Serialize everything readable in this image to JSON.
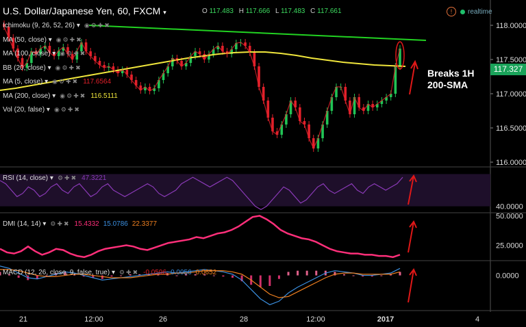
{
  "header": {
    "title": "U.S. Dollar/Japanese Yen, 60, FXCM",
    "open_label": "O",
    "open": "117.483",
    "high_label": "H",
    "high": "117.666",
    "low_label": "L",
    "low": "117.483",
    "close_label": "C",
    "close": "117.661",
    "realtime": "realtime",
    "alert_icon": "alert-icon"
  },
  "colors": {
    "background": "#000000",
    "bull": "#22c455",
    "bear": "#e2202a",
    "sma200": "#f0e63c",
    "trendline": "#22d322",
    "rsi": "#8b3ab8",
    "dmi": "#ff2f7a",
    "macd": "#3b8fe0",
    "signal": "#f08020",
    "annotation": "#e01818"
  },
  "indicators": [
    {
      "label": "Ichimoku (9, 26, 52, 26)"
    },
    {
      "label": "MA (50, close)"
    },
    {
      "label": "MA (100, close)"
    },
    {
      "label": "BB (20, close)"
    },
    {
      "label": "MA (5, close)",
      "value": "117.6564",
      "color": "#e2202a"
    },
    {
      "label": "MA (200, close)",
      "value": "116.5111",
      "color": "#f0e63c"
    },
    {
      "label": "Vol (20, false)"
    }
  ],
  "annotation": {
    "line1": "Breaks 1H",
    "line2": "200-SMA"
  },
  "current_price": "117.327",
  "panes": {
    "rsi": {
      "label": "RSI (14, close)",
      "value": "47.3221"
    },
    "dmi": {
      "label": "DMI (14, 14)",
      "v1": "15.4332",
      "v2": "15.0786",
      "v3": "22.3377"
    },
    "macd": {
      "label": "MACD (12, 26, close, 9, false, true)",
      "v1": "-0.0596",
      "v2": "0.0056",
      "v3": "0.0652"
    }
  },
  "chart_data": [
    {
      "type": "candlestick",
      "title": "U.S. Dollar/Japanese Yen, 60, FXCM",
      "ylim": [
        115.93,
        118.17
      ],
      "y_ticks": [
        118.0,
        117.5,
        117.0,
        116.5,
        116.0
      ],
      "x_ticks": [
        "21",
        "12:00",
        "26",
        "28",
        "12:00",
        "2017",
        "4"
      ],
      "candle_closes": [
        117.98,
        117.82,
        117.66,
        117.52,
        117.38,
        117.45,
        117.62,
        117.58,
        117.66,
        117.7,
        117.6,
        117.55,
        117.63,
        117.68,
        117.58,
        117.5,
        117.62,
        117.75,
        117.62,
        117.55,
        117.48,
        117.42,
        117.38,
        117.4,
        117.35,
        117.3,
        117.35,
        117.28,
        117.2,
        117.12,
        117.05,
        117.1,
        117.04,
        117.08,
        117.2,
        117.3,
        117.4,
        117.52,
        117.48,
        117.4,
        117.45,
        117.55,
        117.62,
        117.58,
        117.5,
        117.58,
        117.65,
        117.7,
        117.62,
        117.58,
        117.65,
        117.74,
        117.75,
        117.7,
        117.6,
        117.4,
        117.1,
        116.9,
        116.65,
        116.45,
        116.4,
        116.55,
        116.7,
        116.9,
        116.8,
        116.6,
        116.55,
        116.35,
        116.2,
        116.35,
        116.55,
        116.75,
        116.95,
        117.1,
        117.1,
        116.9,
        116.7,
        116.95,
        116.8,
        116.75,
        116.85,
        116.8,
        116.85,
        116.9,
        116.95,
        117.0,
        117.4,
        117.66
      ],
      "sma200": [
        117.05,
        117.08,
        117.12,
        117.16,
        117.2,
        117.24,
        117.28,
        117.32,
        117.36,
        117.4,
        117.44,
        117.48,
        117.52,
        117.55,
        117.58,
        117.6,
        117.61,
        117.61,
        117.59,
        117.56,
        117.52,
        117.49,
        117.46,
        117.44,
        117.42,
        117.41,
        117.4
      ],
      "trendline": {
        "from": 118.0,
        "to": 117.78
      },
      "current_price": 117.327
    },
    {
      "type": "line",
      "name": "RSI (14, close)",
      "ylim": [
        38,
        52
      ],
      "y_ticks": [
        40.0
      ],
      "values": [
        48,
        47,
        45,
        43,
        44,
        46,
        45,
        43,
        44,
        46,
        47,
        45,
        44,
        46,
        47,
        45,
        43,
        44,
        46,
        47,
        45,
        44,
        43,
        44,
        45,
        46,
        47,
        46,
        44,
        43,
        44,
        45,
        47,
        48,
        49,
        48,
        47,
        46,
        47,
        48,
        49,
        48,
        46,
        44,
        42,
        40,
        39,
        40,
        42,
        44,
        46,
        45,
        43,
        41,
        42,
        44,
        46,
        47,
        45,
        44,
        45,
        46,
        47,
        45,
        44,
        46,
        47,
        46,
        45,
        46,
        47,
        49
      ]
    },
    {
      "type": "line",
      "name": "DMI (14, 14)",
      "ylim": [
        12,
        52
      ],
      "y_ticks": [
        50.0,
        25.0
      ],
      "values": [
        22,
        19,
        18,
        20,
        24,
        20,
        17,
        19,
        22,
        21,
        18,
        16,
        15,
        17,
        20,
        22,
        23,
        24,
        25,
        24,
        22,
        21,
        23,
        25,
        27,
        28,
        29,
        30,
        32,
        31,
        33,
        35,
        36,
        38,
        41,
        45,
        49,
        50,
        47,
        43,
        38,
        35,
        33,
        31,
        30,
        28,
        25,
        22,
        20,
        19,
        18,
        18,
        17,
        17,
        16,
        16,
        15,
        17
      ]
    },
    {
      "type": "line",
      "name": "MACD (12, 26, close, 9, false, true)",
      "ylim": [
        -0.3,
        0.12
      ],
      "y_ticks": [
        0.0
      ],
      "macd": [
        0.08,
        0.06,
        0.02,
        -0.02,
        -0.03,
        -0.01,
        0.01,
        0.03,
        0.02,
        0.0,
        -0.02,
        -0.04,
        -0.03,
        -0.02,
        -0.01,
        0.0,
        0.01,
        0.02,
        0.03,
        0.02,
        0.03,
        0.04,
        0.05,
        0.04,
        0.03,
        0.01,
        -0.04,
        -0.12,
        -0.2,
        -0.25,
        -0.22,
        -0.15,
        -0.1,
        -0.06,
        -0.02,
        0.02,
        0.04,
        0.03,
        0.02,
        0.0,
        0.0,
        0.01,
        0.02,
        0.06
      ],
      "signal": [
        0.05,
        0.05,
        0.04,
        0.02,
        0.0,
        -0.01,
        -0.01,
        0.0,
        0.01,
        0.01,
        0.0,
        -0.01,
        -0.02,
        -0.02,
        -0.02,
        -0.01,
        0.0,
        0.01,
        0.01,
        0.02,
        0.02,
        0.03,
        0.04,
        0.04,
        0.04,
        0.03,
        0.01,
        -0.04,
        -0.1,
        -0.16,
        -0.19,
        -0.18,
        -0.14,
        -0.1,
        -0.06,
        -0.02,
        0.01,
        0.02,
        0.02,
        0.01,
        0.01,
        0.01,
        0.01,
        0.03
      ]
    }
  ]
}
